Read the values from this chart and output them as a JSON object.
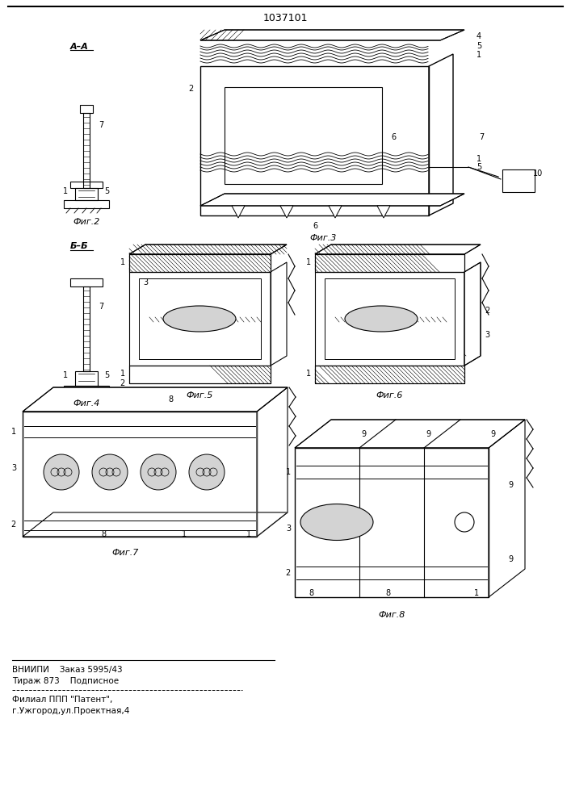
{
  "patent_number": "1037101",
  "background_color": "#ffffff",
  "fig_width": 7.07,
  "fig_height": 10.0,
  "bottom_text_line1": "ВНИИПИ    Заказ 5995/43",
  "bottom_text_line2": "Тираж 873    Подписное",
  "bottom_text_line3": "Филиал ППП \"Патент\",",
  "bottom_text_line4": "г.Ужгород,ул.Проектная,4"
}
